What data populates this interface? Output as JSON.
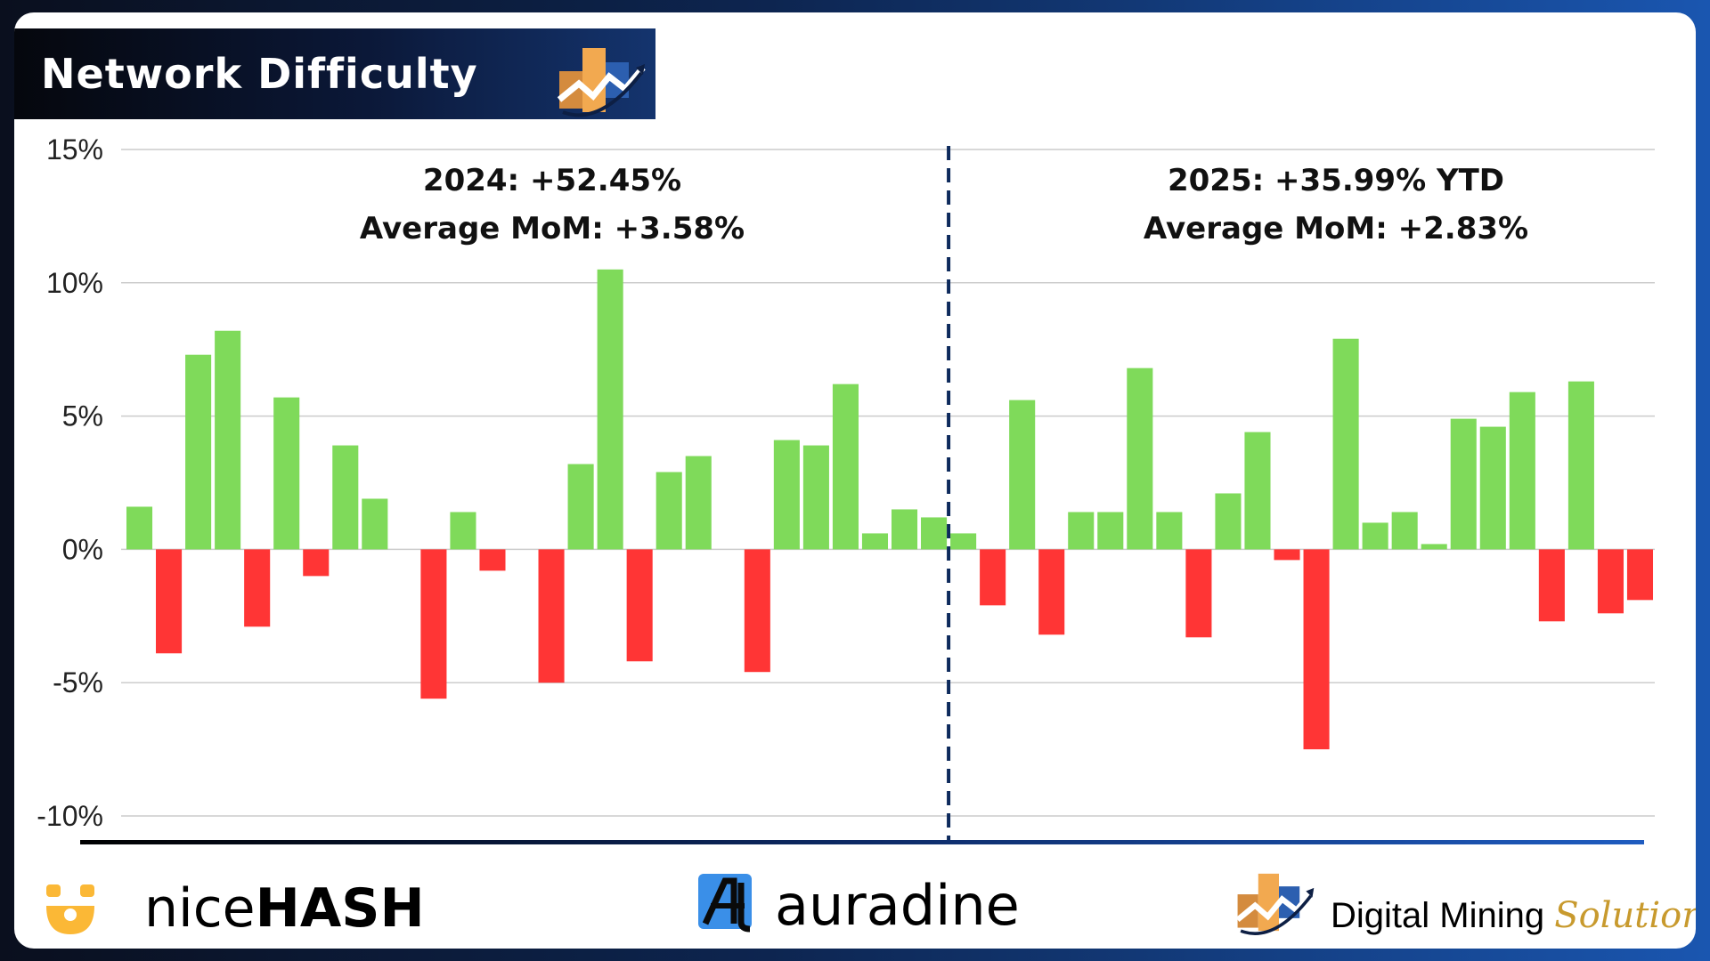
{
  "header": {
    "title": "Network Difficulty"
  },
  "annotations": {
    "left_line1": "2024: +52.45%",
    "left_line2": "Average MoM: +3.58%",
    "right_line1": "2025: +35.99% YTD",
    "right_line2": "Average MoM: +2.83%"
  },
  "colors": {
    "positive": "#7fda5a",
    "negative": "#ff3535",
    "divider": "#0d2a5c",
    "grid": "#cccccc"
  },
  "chart_data": {
    "type": "bar",
    "title": "Network Difficulty",
    "xlabel": "",
    "ylabel": "",
    "ylim": [
      -10,
      15
    ],
    "yticks": [
      15,
      10,
      5,
      0,
      -5,
      -10
    ],
    "ytick_labels": [
      "15%",
      "10%",
      "5%",
      "0%",
      "-5%",
      "-10%"
    ],
    "grid": true,
    "divider_after_index": 26,
    "series": [
      {
        "name": "2024",
        "values": [
          1.6,
          -3.9,
          7.3,
          8.2,
          -2.9,
          5.7,
          -1.0,
          3.9,
          1.9,
          0.0,
          -5.6,
          1.4,
          -0.8,
          0.0,
          -5.0,
          3.2,
          10.5,
          -4.2,
          2.9,
          3.5,
          0.0,
          -4.6,
          4.1,
          3.9,
          6.2,
          0.6,
          1.5,
          1.2
        ]
      },
      {
        "name": "2025",
        "values": [
          0.6,
          -2.1,
          5.6,
          -3.2,
          1.4,
          1.4,
          6.8,
          1.4,
          -3.3,
          2.1,
          4.4,
          -0.4,
          -7.5,
          7.9,
          1.0,
          1.4,
          0.2,
          4.9,
          4.6,
          5.9,
          -2.7,
          6.3,
          -2.4,
          -1.9
        ]
      }
    ],
    "values": [
      1.6,
      -3.9,
      7.3,
      8.2,
      -2.9,
      5.7,
      -1.0,
      3.9,
      1.9,
      0.0,
      -5.6,
      1.4,
      -0.8,
      0.0,
      -5.0,
      3.2,
      10.5,
      -4.2,
      2.9,
      3.5,
      0.0,
      -4.6,
      4.1,
      3.9,
      6.2,
      0.6,
      1.5,
      1.2,
      0.6,
      -2.1,
      5.6,
      -3.2,
      1.4,
      1.4,
      6.8,
      1.4,
      -3.3,
      2.1,
      4.4,
      -0.4,
      -7.5,
      7.9,
      1.0,
      1.4,
      0.2,
      4.9,
      4.6,
      5.9,
      -2.7,
      6.3,
      -2.4,
      -1.9
    ]
  },
  "footer": {
    "nicehash_a": "nice",
    "nicehash_b": "HASH",
    "auradine": "auradine",
    "dms_a": "Digital Mining ",
    "dms_b": "Solutions"
  }
}
